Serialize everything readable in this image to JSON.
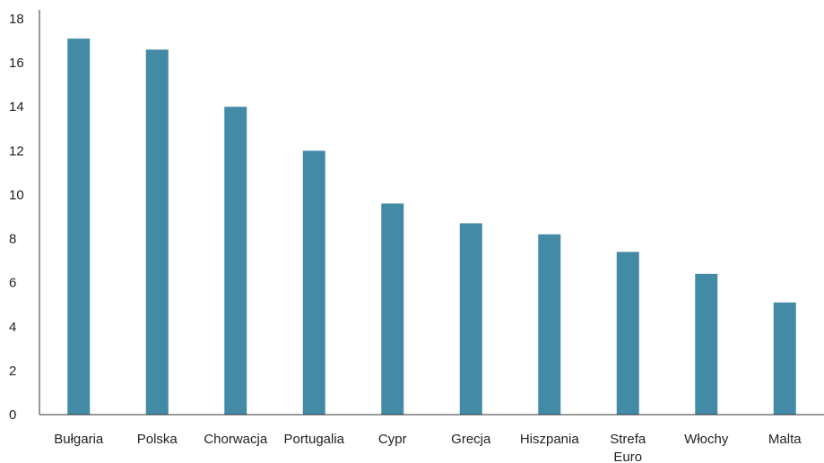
{
  "chart_data": {
    "type": "bar",
    "title": "",
    "xlabel": "",
    "ylabel": "",
    "ylim": [
      0,
      18
    ],
    "yticks": [
      "0",
      "2",
      "4",
      "6",
      "8",
      "10",
      "12",
      "14",
      "16",
      "18"
    ],
    "categories": [
      [
        "Bułgaria"
      ],
      [
        "Polska"
      ],
      [
        "Chorwacja"
      ],
      [
        "Portugalia"
      ],
      [
        "Cypr"
      ],
      [
        "Grecja"
      ],
      [
        "Hiszpania"
      ],
      [
        "Strefa",
        "Euro"
      ],
      [
        "Włochy"
      ],
      [
        "Malta"
      ]
    ],
    "values": [
      17.1,
      16.6,
      14.0,
      12.0,
      9.6,
      8.7,
      8.2,
      7.4,
      6.4,
      5.1
    ],
    "grid": false,
    "legend": "none",
    "bar_color": "#438aa7",
    "axis_color": "#333333"
  }
}
